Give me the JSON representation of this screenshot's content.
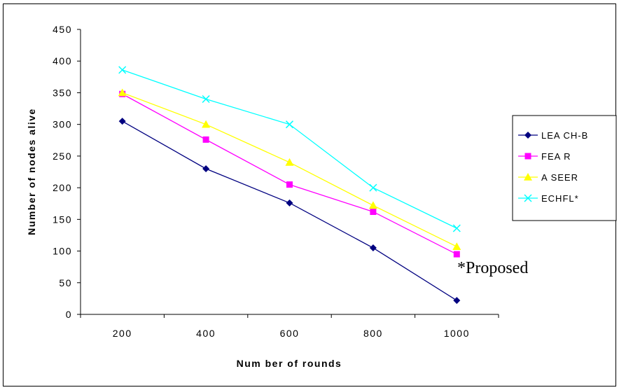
{
  "chart_data": {
    "type": "line",
    "title": "",
    "xlabel": "Num ber of rounds",
    "ylabel": "Number of nodes alive",
    "x": [
      200,
      400,
      600,
      800,
      1000
    ],
    "y_ticks": [
      "0",
      "50",
      "100",
      "150",
      "200",
      "250",
      "300",
      "350",
      "400",
      "450"
    ],
    "ylim": [
      0,
      450
    ],
    "grid": false,
    "legend_position": "right",
    "annotation": "*Proposed",
    "series": [
      {
        "name": "LEA CH-B",
        "color": "#000080",
        "marker": "diamond",
        "values": [
          305,
          230,
          176,
          105,
          22
        ]
      },
      {
        "name": "FEA R",
        "color": "#ff00ff",
        "marker": "square",
        "values": [
          348,
          276,
          205,
          162,
          95
        ]
      },
      {
        "name": "A SEER",
        "color": "#ffff00",
        "marker": "triangle",
        "values": [
          350,
          300,
          240,
          172,
          107
        ]
      },
      {
        "name": "ECHFL*",
        "color": "#00ffff",
        "marker": "x",
        "values": [
          386,
          340,
          300,
          200,
          136
        ]
      }
    ]
  }
}
